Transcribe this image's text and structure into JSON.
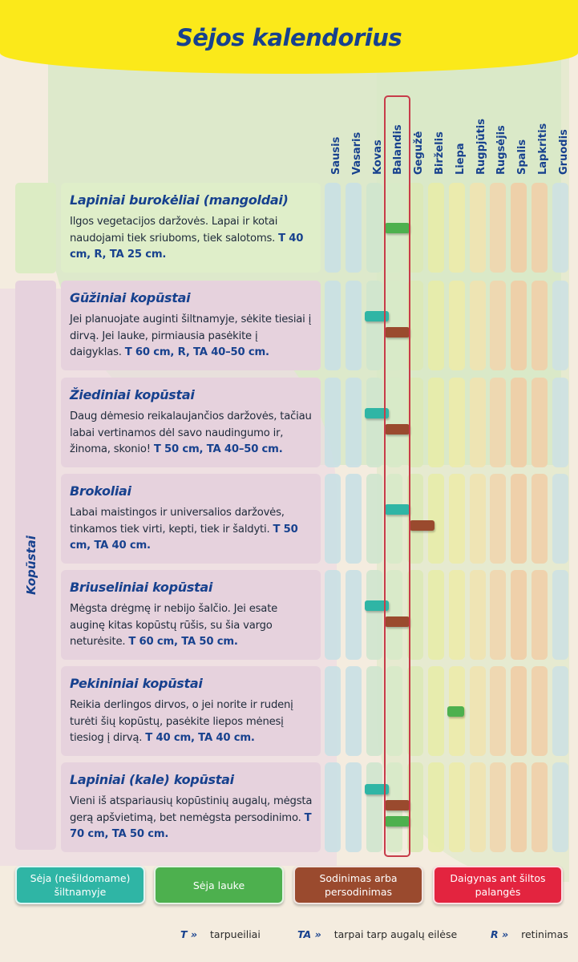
{
  "title": "Sėjos kalendorius",
  "months": [
    "Sausis",
    "Vasaris",
    "Kovas",
    "Balandis",
    "Gegužė",
    "Birželis",
    "Liepa",
    "Rugpjūtis",
    "Rugsėjis",
    "Spalis",
    "Lapkritis",
    "Gruodis"
  ],
  "month_colors": [
    "#c9e0e4",
    "#c9e0e4",
    "#cfe6ce",
    "#d7eac8",
    "#dbe9b6",
    "#e7eca8",
    "#ecebaa",
    "#efe3b0",
    "#f0d6ae",
    "#efcda5",
    "#efcfa8",
    "#cde1e2"
  ],
  "group_label": "Kopūstai",
  "highlight_month": "Balandis",
  "crops": [
    {
      "name": "Lapiniai burokėliai (mangoldai)",
      "text": "Ilgos vegetacijos daržovės. Lapai ir kotai naudojami tiek sriuboms, tiek salotoms.",
      "spec": "T 40 cm, R, TA 25 cm.",
      "group": "none",
      "bars": [
        {
          "type": "lauke",
          "from": 3,
          "to": 4.1
        }
      ]
    },
    {
      "name": "Gūžiniai kopūstai",
      "text": "Jei planuojate auginti šiltnamyje, sėkite tiesiai į dirvą. Jei lauke, pirmiausia pasėkite į daigyklas.",
      "spec": "T 60 cm, R, TA 40–50 cm.",
      "group": "Kopūstai",
      "bars": [
        {
          "type": "siltnamyje",
          "from": 2,
          "to": 3.1
        },
        {
          "type": "sodinimas",
          "from": 3,
          "to": 4.1
        }
      ]
    },
    {
      "name": "Žiediniai kopūstai",
      "text": "Daug dėmesio reikalaujančios daržovės, tačiau labai vertinamos dėl savo naudingumo ir, žinoma, skonio!",
      "spec": "T 50 cm, TA 40–50 cm.",
      "group": "Kopūstai",
      "bars": [
        {
          "type": "siltnamyje",
          "from": 2,
          "to": 3.1
        },
        {
          "type": "sodinimas",
          "from": 3,
          "to": 4.1
        }
      ]
    },
    {
      "name": "Brokoliai",
      "text": "Labai maistingos ir universalios daržovės, tinkamos tiek virti, kepti, tiek ir šaldyti.",
      "spec": "T 50 cm, TA 40 cm.",
      "group": "Kopūstai",
      "bars": [
        {
          "type": "siltnamyje",
          "from": 3,
          "to": 4.1
        },
        {
          "type": "sodinimas",
          "from": 4.2,
          "to": 5.3
        }
      ]
    },
    {
      "name": "Briuseliniai kopūstai",
      "text": "Mėgsta drėgmę ir nebijo šalčio. Jei esate auginę kitas kopūstų rūšis, su šia vargo neturėsite.",
      "spec": "T 60 cm, TA 50 cm.",
      "group": "Kopūstai",
      "bars": [
        {
          "type": "siltnamyje",
          "from": 2,
          "to": 3.1
        },
        {
          "type": "sodinimas",
          "from": 3,
          "to": 4.1
        }
      ]
    },
    {
      "name": "Pekininiai kopūstai",
      "text": "Reikia derlingos dirvos, o jei norite ir rudenį turėti šių kopūstų, pasėkite liepos mėnesį tiesiog į dirvą.",
      "spec": "T 40 cm, TA 40 cm.",
      "group": "Kopūstai",
      "bars": [
        {
          "type": "lauke",
          "from": 6,
          "to": 6.75
        }
      ]
    },
    {
      "name": "Lapiniai (kale) kopūstai",
      "text": "Vieni iš atspariausių kopūstinių augalų, mėgsta gerą apšvietimą, bet nemėgsta persodinimo.",
      "spec": "T 70 cm, TA 50 cm.",
      "group": "Kopūstai",
      "bars": [
        {
          "type": "siltnamyje",
          "from": 2,
          "to": 3.1
        },
        {
          "type": "sodinimas",
          "from": 3,
          "to": 4.1
        },
        {
          "type": "lauke",
          "from": 3,
          "to": 4.1
        }
      ]
    }
  ],
  "legend": [
    {
      "key": "siltnamyje",
      "label": "Sėja (nešildomame) šiltnamyje",
      "color": "#2fb5a5"
    },
    {
      "key": "lauke",
      "label": "Sėja lauke",
      "color": "#4db04e"
    },
    {
      "key": "sodinimas",
      "label": "Sodinimas arba persodinimas",
      "color": "#9a4a2e"
    },
    {
      "key": "daigynas",
      "label": "Daigynas ant šiltos palangės",
      "color": "#e3243f"
    }
  ],
  "abbreviations": [
    {
      "key": "T »",
      "label": "tarpueiliai"
    },
    {
      "key": "TA »",
      "label": "tarpai tarp augalų eilėse"
    },
    {
      "key": "R »",
      "label": "retinimas"
    }
  ]
}
